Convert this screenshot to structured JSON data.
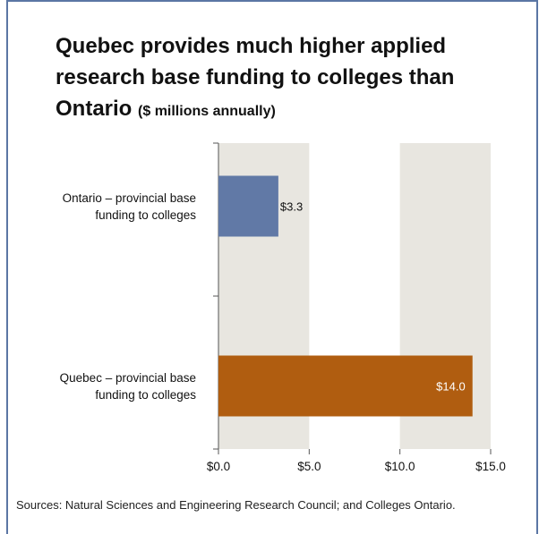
{
  "title": {
    "main": "Quebec provides much higher applied research base funding to colleges than Ontario",
    "unit": "($ millions annually)"
  },
  "source": "Sources: Natural Sciences and Engineering Research Council; and Colleges Ontario.",
  "colors": {
    "frame": "#5b76a4",
    "band": "#e8e6e0",
    "ontario": "#6179a6",
    "quebec": "#b05d10"
  },
  "chart_data": {
    "type": "bar",
    "orientation": "horizontal",
    "categories": [
      [
        "Ontario – provincial base",
        "funding to colleges"
      ],
      [
        "Quebec – provincial base",
        "funding to colleges"
      ]
    ],
    "values": [
      3.3,
      14.0
    ],
    "value_labels": [
      "$3.3",
      "$14.0"
    ],
    "xlim": [
      0,
      15
    ],
    "ticks": [
      0,
      5,
      10,
      15
    ],
    "tick_labels": [
      "$0.0",
      "$5.0",
      "$10.0",
      "$15.0"
    ],
    "grid": "alternating vertical bands",
    "legend": "none"
  }
}
